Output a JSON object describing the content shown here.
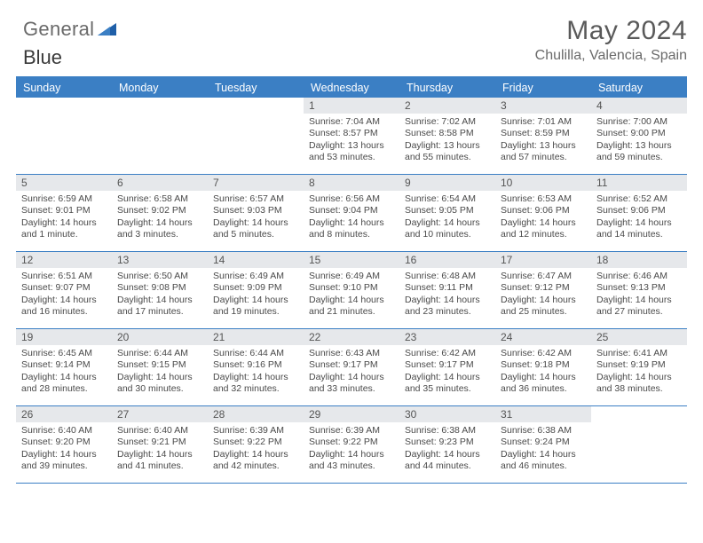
{
  "brand": {
    "word1": "General",
    "word2": "Blue"
  },
  "title": "May 2024",
  "location": "Chulilla, Valencia, Spain",
  "colors": {
    "accent": "#3b7fc4",
    "grid_line": "#3b7fc4",
    "daynum_bg": "#e6e8eb",
    "text": "#3a3a3a"
  },
  "weekdays": [
    "Sunday",
    "Monday",
    "Tuesday",
    "Wednesday",
    "Thursday",
    "Friday",
    "Saturday"
  ],
  "weeks": [
    [
      {
        "empty": true
      },
      {
        "empty": true
      },
      {
        "empty": true
      },
      {
        "day": "1",
        "sunrise": "Sunrise: 7:04 AM",
        "sunset": "Sunset: 8:57 PM",
        "daylight": "Daylight: 13 hours and 53 minutes."
      },
      {
        "day": "2",
        "sunrise": "Sunrise: 7:02 AM",
        "sunset": "Sunset: 8:58 PM",
        "daylight": "Daylight: 13 hours and 55 minutes."
      },
      {
        "day": "3",
        "sunrise": "Sunrise: 7:01 AM",
        "sunset": "Sunset: 8:59 PM",
        "daylight": "Daylight: 13 hours and 57 minutes."
      },
      {
        "day": "4",
        "sunrise": "Sunrise: 7:00 AM",
        "sunset": "Sunset: 9:00 PM",
        "daylight": "Daylight: 13 hours and 59 minutes."
      }
    ],
    [
      {
        "day": "5",
        "sunrise": "Sunrise: 6:59 AM",
        "sunset": "Sunset: 9:01 PM",
        "daylight": "Daylight: 14 hours and 1 minute."
      },
      {
        "day": "6",
        "sunrise": "Sunrise: 6:58 AM",
        "sunset": "Sunset: 9:02 PM",
        "daylight": "Daylight: 14 hours and 3 minutes."
      },
      {
        "day": "7",
        "sunrise": "Sunrise: 6:57 AM",
        "sunset": "Sunset: 9:03 PM",
        "daylight": "Daylight: 14 hours and 5 minutes."
      },
      {
        "day": "8",
        "sunrise": "Sunrise: 6:56 AM",
        "sunset": "Sunset: 9:04 PM",
        "daylight": "Daylight: 14 hours and 8 minutes."
      },
      {
        "day": "9",
        "sunrise": "Sunrise: 6:54 AM",
        "sunset": "Sunset: 9:05 PM",
        "daylight": "Daylight: 14 hours and 10 minutes."
      },
      {
        "day": "10",
        "sunrise": "Sunrise: 6:53 AM",
        "sunset": "Sunset: 9:06 PM",
        "daylight": "Daylight: 14 hours and 12 minutes."
      },
      {
        "day": "11",
        "sunrise": "Sunrise: 6:52 AM",
        "sunset": "Sunset: 9:06 PM",
        "daylight": "Daylight: 14 hours and 14 minutes."
      }
    ],
    [
      {
        "day": "12",
        "sunrise": "Sunrise: 6:51 AM",
        "sunset": "Sunset: 9:07 PM",
        "daylight": "Daylight: 14 hours and 16 minutes."
      },
      {
        "day": "13",
        "sunrise": "Sunrise: 6:50 AM",
        "sunset": "Sunset: 9:08 PM",
        "daylight": "Daylight: 14 hours and 17 minutes."
      },
      {
        "day": "14",
        "sunrise": "Sunrise: 6:49 AM",
        "sunset": "Sunset: 9:09 PM",
        "daylight": "Daylight: 14 hours and 19 minutes."
      },
      {
        "day": "15",
        "sunrise": "Sunrise: 6:49 AM",
        "sunset": "Sunset: 9:10 PM",
        "daylight": "Daylight: 14 hours and 21 minutes."
      },
      {
        "day": "16",
        "sunrise": "Sunrise: 6:48 AM",
        "sunset": "Sunset: 9:11 PM",
        "daylight": "Daylight: 14 hours and 23 minutes."
      },
      {
        "day": "17",
        "sunrise": "Sunrise: 6:47 AM",
        "sunset": "Sunset: 9:12 PM",
        "daylight": "Daylight: 14 hours and 25 minutes."
      },
      {
        "day": "18",
        "sunrise": "Sunrise: 6:46 AM",
        "sunset": "Sunset: 9:13 PM",
        "daylight": "Daylight: 14 hours and 27 minutes."
      }
    ],
    [
      {
        "day": "19",
        "sunrise": "Sunrise: 6:45 AM",
        "sunset": "Sunset: 9:14 PM",
        "daylight": "Daylight: 14 hours and 28 minutes."
      },
      {
        "day": "20",
        "sunrise": "Sunrise: 6:44 AM",
        "sunset": "Sunset: 9:15 PM",
        "daylight": "Daylight: 14 hours and 30 minutes."
      },
      {
        "day": "21",
        "sunrise": "Sunrise: 6:44 AM",
        "sunset": "Sunset: 9:16 PM",
        "daylight": "Daylight: 14 hours and 32 minutes."
      },
      {
        "day": "22",
        "sunrise": "Sunrise: 6:43 AM",
        "sunset": "Sunset: 9:17 PM",
        "daylight": "Daylight: 14 hours and 33 minutes."
      },
      {
        "day": "23",
        "sunrise": "Sunrise: 6:42 AM",
        "sunset": "Sunset: 9:17 PM",
        "daylight": "Daylight: 14 hours and 35 minutes."
      },
      {
        "day": "24",
        "sunrise": "Sunrise: 6:42 AM",
        "sunset": "Sunset: 9:18 PM",
        "daylight": "Daylight: 14 hours and 36 minutes."
      },
      {
        "day": "25",
        "sunrise": "Sunrise: 6:41 AM",
        "sunset": "Sunset: 9:19 PM",
        "daylight": "Daylight: 14 hours and 38 minutes."
      }
    ],
    [
      {
        "day": "26",
        "sunrise": "Sunrise: 6:40 AM",
        "sunset": "Sunset: 9:20 PM",
        "daylight": "Daylight: 14 hours and 39 minutes."
      },
      {
        "day": "27",
        "sunrise": "Sunrise: 6:40 AM",
        "sunset": "Sunset: 9:21 PM",
        "daylight": "Daylight: 14 hours and 41 minutes."
      },
      {
        "day": "28",
        "sunrise": "Sunrise: 6:39 AM",
        "sunset": "Sunset: 9:22 PM",
        "daylight": "Daylight: 14 hours and 42 minutes."
      },
      {
        "day": "29",
        "sunrise": "Sunrise: 6:39 AM",
        "sunset": "Sunset: 9:22 PM",
        "daylight": "Daylight: 14 hours and 43 minutes."
      },
      {
        "day": "30",
        "sunrise": "Sunrise: 6:38 AM",
        "sunset": "Sunset: 9:23 PM",
        "daylight": "Daylight: 14 hours and 44 minutes."
      },
      {
        "day": "31",
        "sunrise": "Sunrise: 6:38 AM",
        "sunset": "Sunset: 9:24 PM",
        "daylight": "Daylight: 14 hours and 46 minutes."
      },
      {
        "empty": true
      }
    ]
  ]
}
